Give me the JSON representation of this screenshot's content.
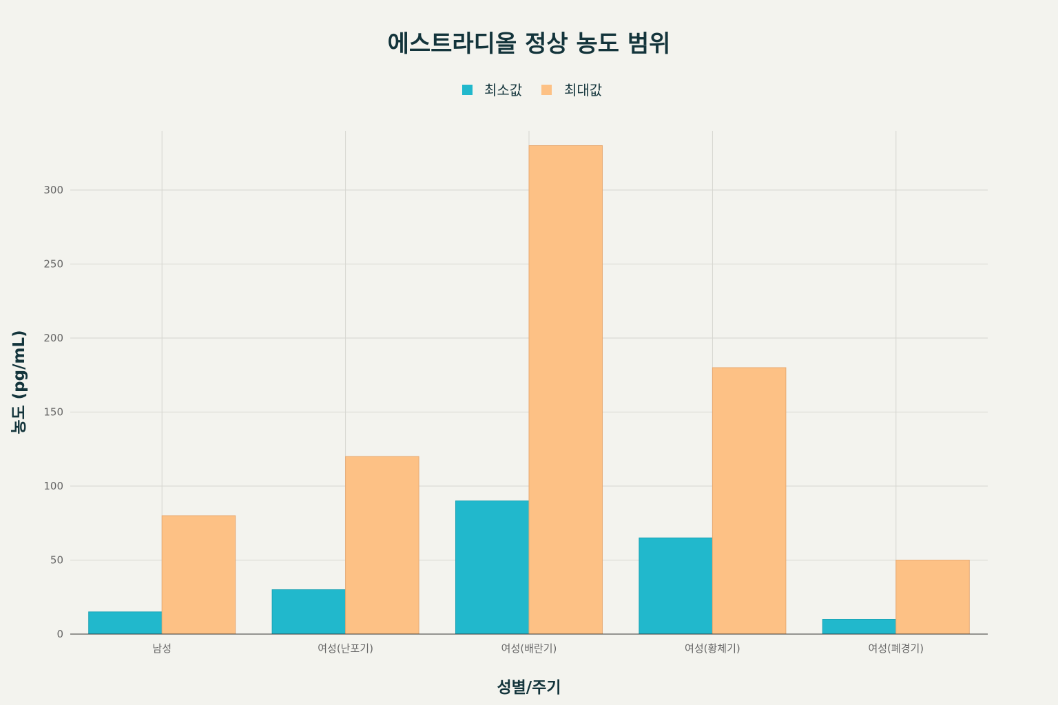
{
  "chart_data": {
    "type": "bar",
    "title": "에스트라디올 정상 농도 범위",
    "xlabel": "성별/주기",
    "ylabel": "농도 (pg/mL)",
    "categories": [
      "남성",
      "여성(난포기)",
      "여성(배란기)",
      "여성(황체기)",
      "여성(폐경기)"
    ],
    "series": [
      {
        "name": "최소값",
        "values": [
          15,
          30,
          90,
          65,
          10
        ],
        "color": "#21b8cc"
      },
      {
        "name": "최대값",
        "values": [
          80,
          120,
          330,
          180,
          50
        ],
        "color": "#fdc185"
      }
    ],
    "ylim": [
      0,
      340
    ],
    "yticks": [
      0,
      50,
      100,
      150,
      200,
      250,
      300
    ],
    "grid": true,
    "legend_position": "top-center"
  }
}
